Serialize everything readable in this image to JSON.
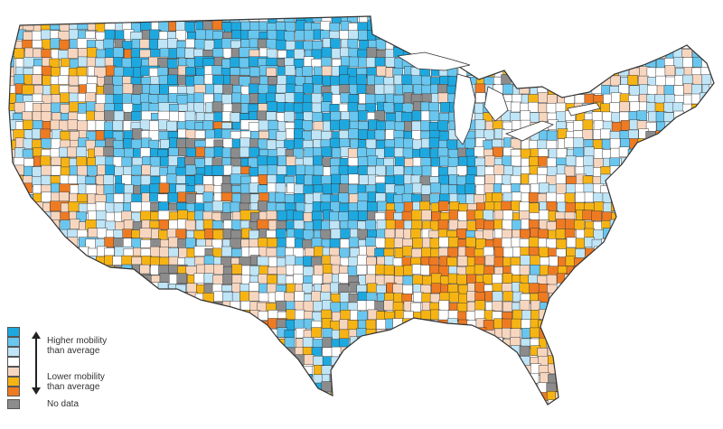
{
  "colors": {
    "higher_1": "#1ea8e0",
    "higher_2": "#69c6ee",
    "higher_3": "#bfe5f7",
    "neutral": "#ffffff",
    "lower_1": "#f7d6c0",
    "lower_2": "#f6b414",
    "lower_3": "#ee7a22",
    "no_data": "#8c8c8c",
    "county_border": "#333333"
  },
  "legend": {
    "higher_line1": "Higher mobility",
    "higher_line2": "than average",
    "lower_line1": "Lower mobility",
    "lower_line2": "than average",
    "no_data": "No data",
    "swatch_order": [
      "higher_1",
      "higher_2",
      "higher_3",
      "neutral",
      "lower_1",
      "lower_2",
      "lower_3",
      "no_data"
    ]
  }
}
